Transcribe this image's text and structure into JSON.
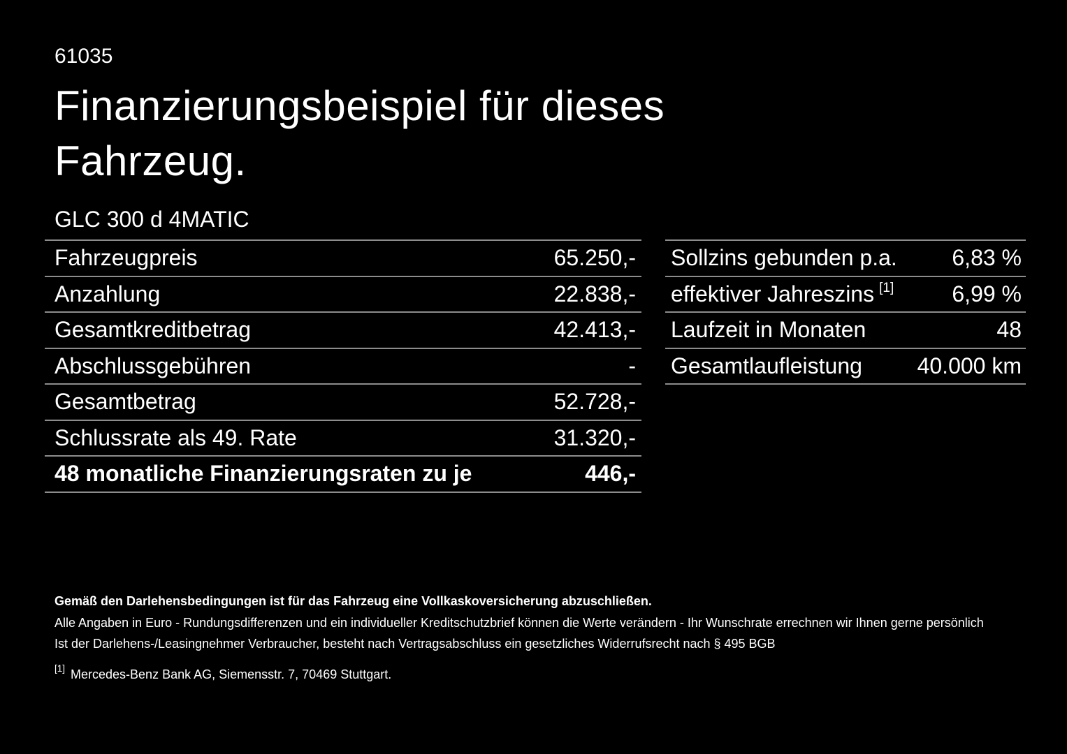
{
  "page": {
    "code": "61035",
    "title_lines": [
      "Finanzierungsbeispiel für dieses",
      "Fahrzeug."
    ],
    "vehicle": "GLC 300 d 4MATIC"
  },
  "finance_table": {
    "rows": [
      {
        "label": "Fahrzeugpreis",
        "value": "65.250,-"
      },
      {
        "label": "Anzahlung",
        "value": "22.838,-"
      },
      {
        "label": "Gesamtkreditbetrag",
        "value": "42.413,-"
      },
      {
        "label": "Abschlussgebühren",
        "value": "-"
      },
      {
        "label": "Gesamtbetrag",
        "value": "52.728,-"
      },
      {
        "label": "Schlussrate als 49. Rate",
        "value": "31.320,-"
      },
      {
        "label": "48 monatliche Finanzierungsraten zu je",
        "value": "446,-"
      }
    ]
  },
  "conditions_table": {
    "rows": [
      {
        "label": "Sollzins gebunden p.a.",
        "value": "6,83 %"
      },
      {
        "label": "effektiver Jahreszins",
        "sup": "[1]",
        "value": "6,99 %"
      },
      {
        "label": "Laufzeit in Monaten",
        "value": "48"
      },
      {
        "label": "Gesamtlaufleistung",
        "value": "40.000 km"
      }
    ]
  },
  "footer": {
    "bold_note": "Gemäß den Darlehensbedingungen ist für das Fahrzeug eine Vollkaskoversicherung abzuschließen.",
    "note1": "Alle Angaben in Euro - Rundungsdifferenzen und ein individueller Kreditschutzbrief können die Werte verändern - Ihr Wunschrate errechnen wir Ihnen gerne persönlich",
    "note2": "Ist der Darlehens-/Leasingnehmer Verbraucher, besteht nach Vertragsabschluss ein gesetzliches Widerrufsrecht nach § 495 BGB",
    "footnote_marker": "[1]",
    "footnote_text": "Mercedes-Benz Bank AG, Siemensstr. 7, 70469 Stuttgart."
  },
  "colors": {
    "background": "#000000",
    "text": "#ffffff",
    "divider": "#8c8c8c"
  }
}
